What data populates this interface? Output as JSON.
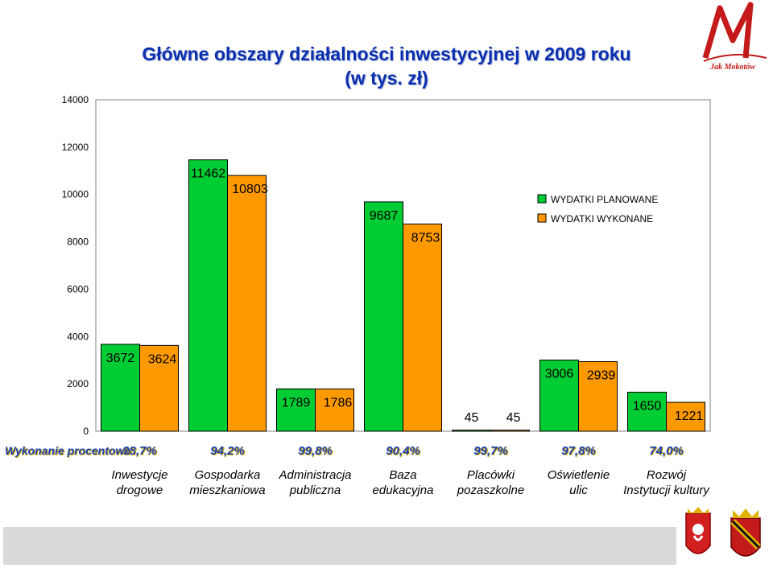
{
  "title_line1": "Główne obszary działalności inwestycyjnej w 2009 roku",
  "title_line2": "(w tys. zł)",
  "logo": {
    "letter": "M",
    "text": "Jak Mokotów"
  },
  "colors": {
    "planned": "#00cc33",
    "executed": "#ff9900",
    "percent_text": "#1a3fb5",
    "percent_shadow": "#c9a600",
    "title": "#0a2fb0"
  },
  "chart_data": {
    "type": "bar",
    "categories": [
      "Inwestycje drogowe",
      "Gospodarka mieszkaniowa",
      "Administracja publiczna",
      "Baza edukacyjna",
      "Placówki pozaszkolne",
      "Oświetlenie ulic",
      "Rozwój Instytucji kultury"
    ],
    "category_lines": [
      [
        "Inwestycje",
        "drogowe"
      ],
      [
        "Gospodarka",
        "mieszkaniowa"
      ],
      [
        "Administracja",
        "publiczna"
      ],
      [
        "Baza",
        "edukacyjna"
      ],
      [
        "Placówki",
        "pozaszkolne"
      ],
      [
        "Oświetlenie",
        "ulic"
      ],
      [
        "Rozwój",
        "Instytucji kultury"
      ]
    ],
    "series": [
      {
        "name": "WYDATKI PLANOWANE",
        "values": [
          3672,
          11462,
          1789,
          9687,
          45,
          3006,
          1650
        ],
        "labels": [
          "3672",
          "11462",
          "1789",
          "9687",
          "45",
          "3006",
          "1650"
        ]
      },
      {
        "name": "WYDATKI WYKONANE",
        "values": [
          3624,
          10803,
          1786,
          8753,
          45,
          2939,
          1221
        ],
        "labels": [
          "3624",
          "10803",
          "1786",
          "8753",
          "45",
          "2939",
          "1221"
        ]
      }
    ],
    "yticks": [
      "0",
      "2000",
      "4000",
      "6000",
      "8000",
      "10000",
      "12000",
      "14000"
    ],
    "ylim": [
      0,
      14000
    ],
    "legend_position": "right",
    "execution_label": "Wykonanie procentowe",
    "execution_percent": [
      "98,7%",
      "94,2%",
      "99,8%",
      "90,4%",
      "99,7%",
      "97,8%",
      "74,0%"
    ],
    "grid": false
  }
}
